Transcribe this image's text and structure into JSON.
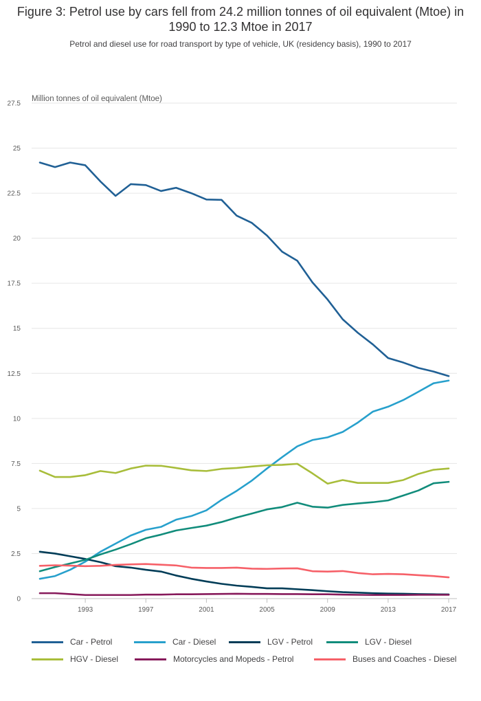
{
  "title": "Figure 3: Petrol use by cars fell from 24.2 million tonnes of oil equivalent (Mtoe) in 1990 to 12.3 Mtoe in 2017",
  "subtitle": "Petrol and diesel use for road transport by type of vehicle, UK (residency basis), 1990 to 2017",
  "chart_data": {
    "type": "line",
    "title": "Figure 3: Petrol use by cars fell from 24.2 million tonnes of oil equivalent (Mtoe) in 1990 to 12.3 Mtoe in 2017",
    "ylabel": "Million tonnes of oil equivalent (Mtoe)",
    "xlabel": "",
    "ylim": [
      0,
      27.5
    ],
    "yticks": [
      0,
      2.5,
      5,
      7.5,
      10,
      12.5,
      15,
      17.5,
      20,
      22.5,
      25,
      27.5
    ],
    "ytick_labels": [
      "0",
      "2.5",
      "5",
      "7.5",
      "10",
      "12.5",
      "15",
      "17.5",
      "20",
      "22.5",
      "25",
      "27.5"
    ],
    "xticks": [
      1993,
      1997,
      2001,
      2005,
      2009,
      2013,
      2017
    ],
    "xtick_labels": [
      "1993",
      "1997",
      "2001",
      "2005",
      "2009",
      "2013",
      "2017"
    ],
    "x": [
      1990,
      1991,
      1992,
      1993,
      1994,
      1995,
      1996,
      1997,
      1998,
      1999,
      2000,
      2001,
      2002,
      2003,
      2004,
      2005,
      2006,
      2007,
      2008,
      2009,
      2010,
      2011,
      2012,
      2013,
      2014,
      2015,
      2016,
      2017
    ],
    "grid": true,
    "legend_position": "bottom",
    "series": [
      {
        "name": "Car - Petrol",
        "color": "#206095",
        "values": [
          24.2,
          23.95,
          24.2,
          24.05,
          23.15,
          22.35,
          23.0,
          22.95,
          22.62,
          22.8,
          22.5,
          22.15,
          22.13,
          21.25,
          20.85,
          20.15,
          19.25,
          18.75,
          17.55,
          16.6,
          15.5,
          14.75,
          14.1,
          13.35,
          13.1,
          12.8,
          12.6,
          12.35
        ]
      },
      {
        "name": "Car - Diesel",
        "color": "#27a0cc",
        "values": [
          1.1,
          1.25,
          1.6,
          2.05,
          2.6,
          3.05,
          3.5,
          3.82,
          3.98,
          4.38,
          4.58,
          4.9,
          5.48,
          5.98,
          6.55,
          7.22,
          7.85,
          8.45,
          8.8,
          8.95,
          9.25,
          9.77,
          10.38,
          10.65,
          11.02,
          11.48,
          11.95,
          12.1
        ]
      },
      {
        "name": "LGV - Petrol",
        "color": "#003c57",
        "values": [
          2.6,
          2.5,
          2.35,
          2.2,
          2.02,
          1.8,
          1.72,
          1.6,
          1.5,
          1.28,
          1.1,
          0.95,
          0.82,
          0.72,
          0.65,
          0.57,
          0.57,
          0.52,
          0.47,
          0.41,
          0.36,
          0.33,
          0.3,
          0.28,
          0.27,
          0.25,
          0.24,
          0.23
        ]
      },
      {
        "name": "LGV - Diesel",
        "color": "#118c7b",
        "values": [
          1.52,
          1.75,
          1.95,
          2.15,
          2.45,
          2.72,
          3.02,
          3.35,
          3.55,
          3.78,
          3.92,
          4.05,
          4.25,
          4.5,
          4.72,
          4.95,
          5.08,
          5.32,
          5.1,
          5.05,
          5.2,
          5.28,
          5.35,
          5.45,
          5.72,
          6.0,
          6.4,
          6.48
        ]
      },
      {
        "name": "HGV - Diesel",
        "color": "#a8bd3a",
        "values": [
          7.1,
          6.75,
          6.75,
          6.85,
          7.08,
          6.97,
          7.22,
          7.38,
          7.37,
          7.25,
          7.12,
          7.08,
          7.2,
          7.25,
          7.33,
          7.4,
          7.42,
          7.48,
          6.95,
          6.38,
          6.58,
          6.42,
          6.42,
          6.42,
          6.58,
          6.92,
          7.15,
          7.22
        ]
      },
      {
        "name": "Motorcycles and Mopeds - Petrol",
        "color": "#871a5b",
        "values": [
          0.3,
          0.3,
          0.25,
          0.2,
          0.2,
          0.2,
          0.2,
          0.22,
          0.22,
          0.24,
          0.24,
          0.25,
          0.26,
          0.27,
          0.26,
          0.26,
          0.25,
          0.25,
          0.24,
          0.24,
          0.22,
          0.21,
          0.2,
          0.2,
          0.2,
          0.21,
          0.21,
          0.21
        ]
      },
      {
        "name": "Buses and Coaches - Diesel",
        "color": "#f66068",
        "values": [
          1.82,
          1.85,
          1.83,
          1.8,
          1.82,
          1.87,
          1.9,
          1.92,
          1.88,
          1.84,
          1.72,
          1.7,
          1.7,
          1.72,
          1.66,
          1.65,
          1.67,
          1.68,
          1.52,
          1.5,
          1.53,
          1.42,
          1.35,
          1.37,
          1.35,
          1.3,
          1.25,
          1.18
        ]
      }
    ]
  }
}
